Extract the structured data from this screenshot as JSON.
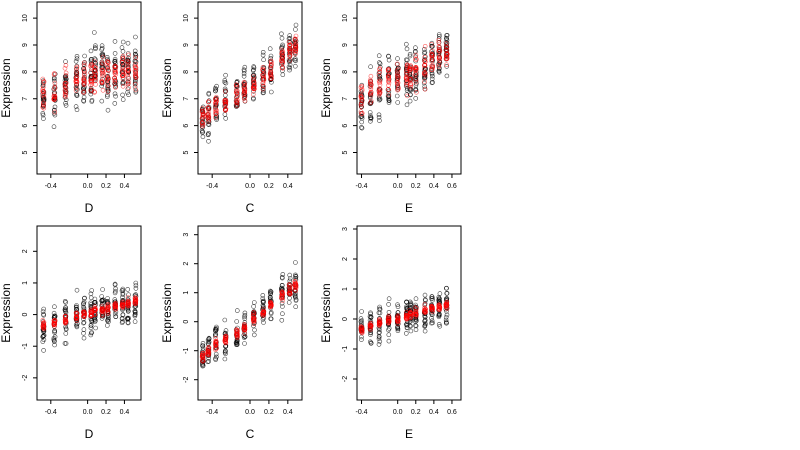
{
  "chart_data": [
    {
      "type": "scatter",
      "xlabel": "D",
      "ylabel": "Expression",
      "xlim": [
        -0.55,
        0.58
      ],
      "ylim": [
        4.2,
        10.6
      ],
      "xticks": [
        "-0.4",
        "0.0",
        "0.2",
        "0.4"
      ],
      "xtick_values": [
        -0.4,
        0.0,
        0.2,
        0.4
      ],
      "yticks": [
        "5",
        "6",
        "7",
        "8",
        "9",
        "10"
      ],
      "ytick_values": [
        5,
        6,
        7,
        8,
        9,
        10
      ],
      "series": [
        {
          "color": "#000000",
          "x_values": [
            -0.48,
            -0.36,
            -0.24,
            -0.12,
            -0.04,
            0.04,
            0.08,
            0.16,
            0.22,
            0.3,
            0.38,
            0.44,
            0.52
          ],
          "center": [
            6.9,
            7.1,
            7.4,
            7.6,
            7.8,
            7.9,
            8.1,
            8.0,
            7.9,
            8.0,
            8.1,
            8.2,
            8.0
          ],
          "spread": 1.1,
          "per_x": 22
        },
        {
          "color": "#ff0000",
          "x_values": [
            -0.48,
            -0.36,
            -0.24,
            -0.12,
            -0.04,
            0.04,
            0.08,
            0.16,
            0.22,
            0.3,
            0.38,
            0.44,
            0.52
          ],
          "center": [
            7.2,
            7.3,
            7.5,
            7.6,
            7.7,
            7.8,
            7.9,
            7.9,
            7.9,
            8.0,
            8.0,
            8.0,
            8.0
          ],
          "spread": 0.7,
          "per_x": 16
        }
      ]
    },
    {
      "type": "scatter",
      "xlabel": "C",
      "ylabel": "Expression",
      "xlim": [
        -0.55,
        0.55
      ],
      "ylim": [
        4.2,
        10.6
      ],
      "xticks": [
        "-0.4",
        "0.0",
        "0.2",
        "0.4"
      ],
      "xtick_values": [
        -0.4,
        0.0,
        0.2,
        0.4
      ],
      "yticks": [
        "5",
        "6",
        "7",
        "8",
        "9",
        "10"
      ],
      "ytick_values": [
        5,
        6,
        7,
        8,
        9,
        10
      ],
      "series": [
        {
          "color": "#000000",
          "x_values": [
            -0.5,
            -0.44,
            -0.36,
            -0.26,
            -0.14,
            -0.06,
            0.04,
            0.14,
            0.22,
            0.34,
            0.42,
            0.48
          ],
          "center": [
            6.2,
            6.4,
            6.8,
            7.0,
            7.0,
            7.3,
            7.5,
            7.8,
            8.0,
            8.4,
            8.7,
            8.9
          ],
          "spread": 0.9,
          "per_x": 20
        },
        {
          "color": "#ff0000",
          "x_values": [
            -0.5,
            -0.44,
            -0.36,
            -0.26,
            -0.14,
            -0.06,
            0.04,
            0.14,
            0.22,
            0.34,
            0.42,
            0.48
          ],
          "center": [
            6.3,
            6.5,
            6.7,
            6.9,
            7.1,
            7.3,
            7.5,
            7.8,
            8.0,
            8.5,
            8.8,
            9.0
          ],
          "spread": 0.45,
          "per_x": 16
        }
      ]
    },
    {
      "type": "scatter",
      "xlabel": "E",
      "ylabel": "Expression",
      "xlim": [
        -0.45,
        0.7
      ],
      "ylim": [
        4.2,
        10.6
      ],
      "xticks": [
        "-0.4",
        "0.0",
        "0.2",
        "0.4",
        "0.6"
      ],
      "xtick_values": [
        -0.4,
        0.0,
        0.2,
        0.4,
        0.6
      ],
      "yticks": [
        "5",
        "6",
        "7",
        "8",
        "9",
        "10"
      ],
      "ytick_values": [
        5,
        6,
        7,
        8,
        9,
        10
      ],
      "series": [
        {
          "color": "#000000",
          "x_values": [
            -0.4,
            -0.3,
            -0.2,
            -0.1,
            0.0,
            0.1,
            0.14,
            0.2,
            0.3,
            0.38,
            0.46,
            0.54
          ],
          "center": [
            6.8,
            7.2,
            7.4,
            7.6,
            7.8,
            7.8,
            7.9,
            8.0,
            8.1,
            8.3,
            8.5,
            8.9
          ],
          "spread": 1.1,
          "per_x": 22
        },
        {
          "color": "#ff0000",
          "x_values": [
            -0.4,
            -0.3,
            -0.2,
            -0.1,
            0.0,
            0.1,
            0.14,
            0.2,
            0.3,
            0.38,
            0.46,
            0.54
          ],
          "center": [
            7.0,
            7.3,
            7.5,
            7.7,
            7.8,
            7.9,
            7.9,
            8.0,
            8.2,
            8.4,
            8.6,
            8.9
          ],
          "spread": 0.7,
          "per_x": 16
        }
      ]
    },
    {
      "type": "scatter",
      "xlabel": "D",
      "ylabel": "Expression",
      "xlim": [
        -0.55,
        0.58
      ],
      "ylim": [
        -2.7,
        2.8
      ],
      "xticks": [
        "-0.4",
        "0.0",
        "0.2",
        "0.4"
      ],
      "xtick_values": [
        -0.4,
        0.0,
        0.2,
        0.4
      ],
      "yticks": [
        "-2",
        "-1",
        "0",
        "1",
        "2"
      ],
      "ytick_values": [
        -2,
        -1,
        0,
        1,
        2
      ],
      "series": [
        {
          "color": "#000000",
          "x_values": [
            -0.48,
            -0.36,
            -0.24,
            -0.12,
            -0.04,
            0.04,
            0.08,
            0.16,
            0.22,
            0.3,
            0.38,
            0.44,
            0.52
          ],
          "center": [
            -0.4,
            -0.3,
            -0.2,
            -0.1,
            0.0,
            0.05,
            0.1,
            0.15,
            0.2,
            0.25,
            0.3,
            0.35,
            0.4
          ],
          "spread": 0.7,
          "per_x": 22
        },
        {
          "color": "#ff0000",
          "x_values": [
            -0.48,
            -0.36,
            -0.24,
            -0.12,
            -0.04,
            0.04,
            0.08,
            0.16,
            0.22,
            0.3,
            0.38,
            0.44,
            0.52
          ],
          "center": [
            -0.35,
            -0.25,
            -0.15,
            -0.05,
            0.0,
            0.05,
            0.1,
            0.15,
            0.2,
            0.25,
            0.3,
            0.35,
            0.4
          ],
          "spread": 0.15,
          "per_x": 16
        }
      ]
    },
    {
      "type": "scatter",
      "xlabel": "C",
      "ylabel": "Expression",
      "xlim": [
        -0.55,
        0.55
      ],
      "ylim": [
        -2.7,
        3.3
      ],
      "xticks": [
        "-0.4",
        "0.0",
        "0.2",
        "0.4"
      ],
      "xtick_values": [
        -0.4,
        0.0,
        0.2,
        0.4
      ],
      "yticks": [
        "-2",
        "-1",
        "0",
        "1",
        "2",
        "3"
      ],
      "ytick_values": [
        -2,
        -1,
        0,
        1,
        2,
        3
      ],
      "series": [
        {
          "color": "#000000",
          "x_values": [
            -0.5,
            -0.44,
            -0.36,
            -0.26,
            -0.14,
            -0.06,
            0.04,
            0.14,
            0.22,
            0.34,
            0.42,
            0.48
          ],
          "center": [
            -1.2,
            -1.0,
            -0.8,
            -0.6,
            -0.4,
            -0.1,
            0.1,
            0.4,
            0.6,
            0.9,
            1.1,
            1.3
          ],
          "spread": 0.7,
          "per_x": 20
        },
        {
          "color": "#ff0000",
          "x_values": [
            -0.5,
            -0.44,
            -0.36,
            -0.26,
            -0.14,
            -0.06,
            0.04,
            0.14,
            0.22,
            0.34,
            0.42,
            0.48
          ],
          "center": [
            -1.2,
            -1.0,
            -0.8,
            -0.6,
            -0.4,
            -0.2,
            0.1,
            0.3,
            0.6,
            0.9,
            1.1,
            1.3
          ],
          "spread": 0.2,
          "per_x": 16
        }
      ]
    },
    {
      "type": "scatter",
      "xlabel": "E",
      "ylabel": "Expression",
      "xlim": [
        -0.45,
        0.7
      ],
      "ylim": [
        -2.7,
        3.1
      ],
      "xticks": [
        "-0.4",
        "0.0",
        "0.2",
        "0.4",
        "0.6"
      ],
      "xtick_values": [
        -0.4,
        0.0,
        0.2,
        0.4,
        0.6
      ],
      "yticks": [
        "-2",
        "-1",
        "0",
        "1",
        "2",
        "3"
      ],
      "ytick_values": [
        -2,
        -1,
        0,
        1,
        2,
        3
      ],
      "series": [
        {
          "color": "#000000",
          "x_values": [
            -0.4,
            -0.3,
            -0.2,
            -0.1,
            0.0,
            0.1,
            0.14,
            0.2,
            0.3,
            0.38,
            0.46,
            0.54
          ],
          "center": [
            -0.4,
            -0.3,
            -0.2,
            -0.1,
            0.0,
            0.1,
            0.15,
            0.2,
            0.3,
            0.35,
            0.4,
            0.45
          ],
          "spread": 0.7,
          "per_x": 22
        },
        {
          "color": "#ff0000",
          "x_values": [
            -0.4,
            -0.3,
            -0.2,
            -0.1,
            0.0,
            0.1,
            0.14,
            0.2,
            0.3,
            0.38,
            0.46,
            0.54
          ],
          "center": [
            -0.35,
            -0.25,
            -0.15,
            -0.05,
            0.0,
            0.1,
            0.15,
            0.2,
            0.3,
            0.35,
            0.4,
            0.45
          ],
          "spread": 0.15,
          "per_x": 16
        }
      ]
    }
  ]
}
